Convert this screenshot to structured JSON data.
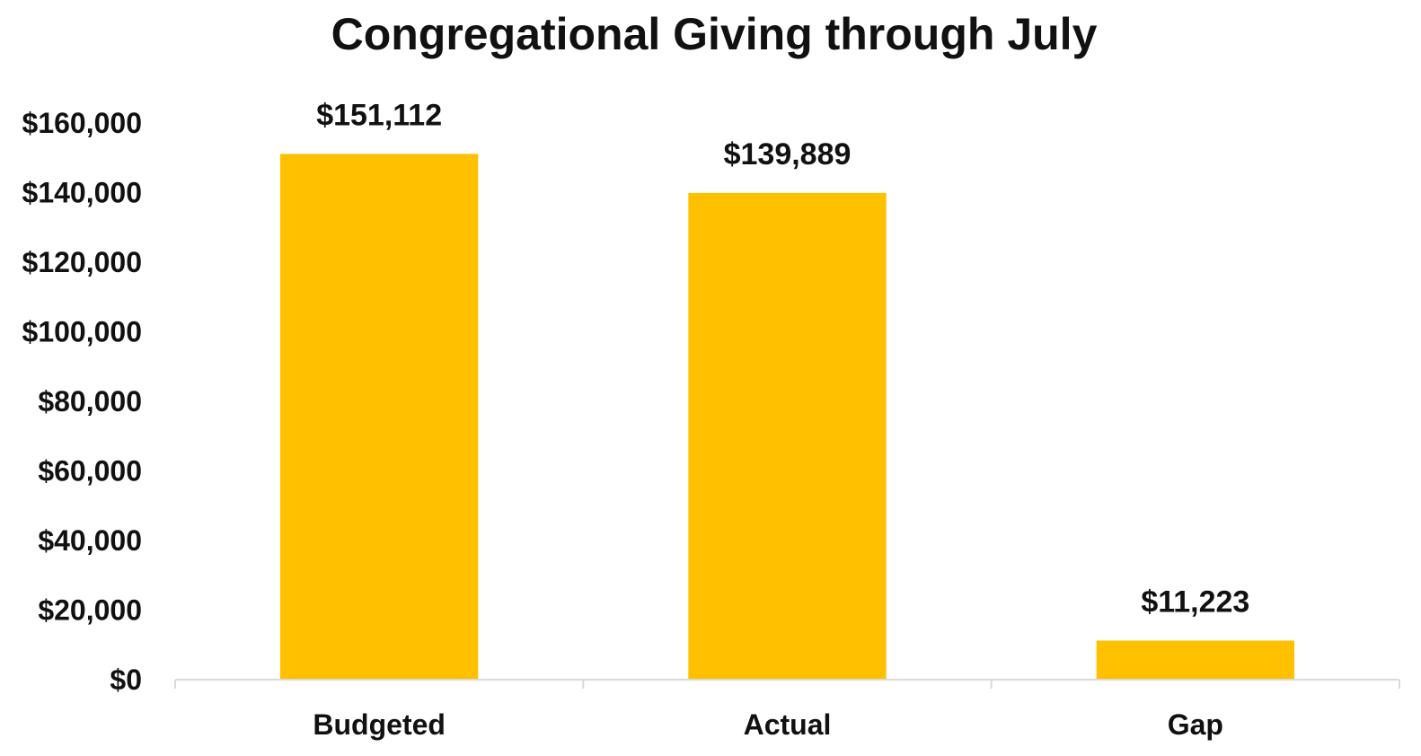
{
  "chart_data": {
    "type": "bar",
    "title": "Congregational Giving through July",
    "categories": [
      "Budgeted",
      "Actual",
      "Gap"
    ],
    "values": [
      151112,
      139889,
      11223
    ],
    "data_labels": [
      "$151,112",
      "$139,889",
      "$11,223"
    ],
    "ylim": [
      0,
      160000
    ],
    "yticks": [
      0,
      20000,
      40000,
      60000,
      80000,
      100000,
      120000,
      140000,
      160000
    ],
    "ytick_labels": [
      "$0",
      "$20,000",
      "$40,000",
      "$60,000",
      "$80,000",
      "$100,000",
      "$120,000",
      "$140,000",
      "$160,000"
    ],
    "xlabel": "",
    "ylabel": "",
    "grid": false,
    "bar_color": "#FFC000"
  }
}
